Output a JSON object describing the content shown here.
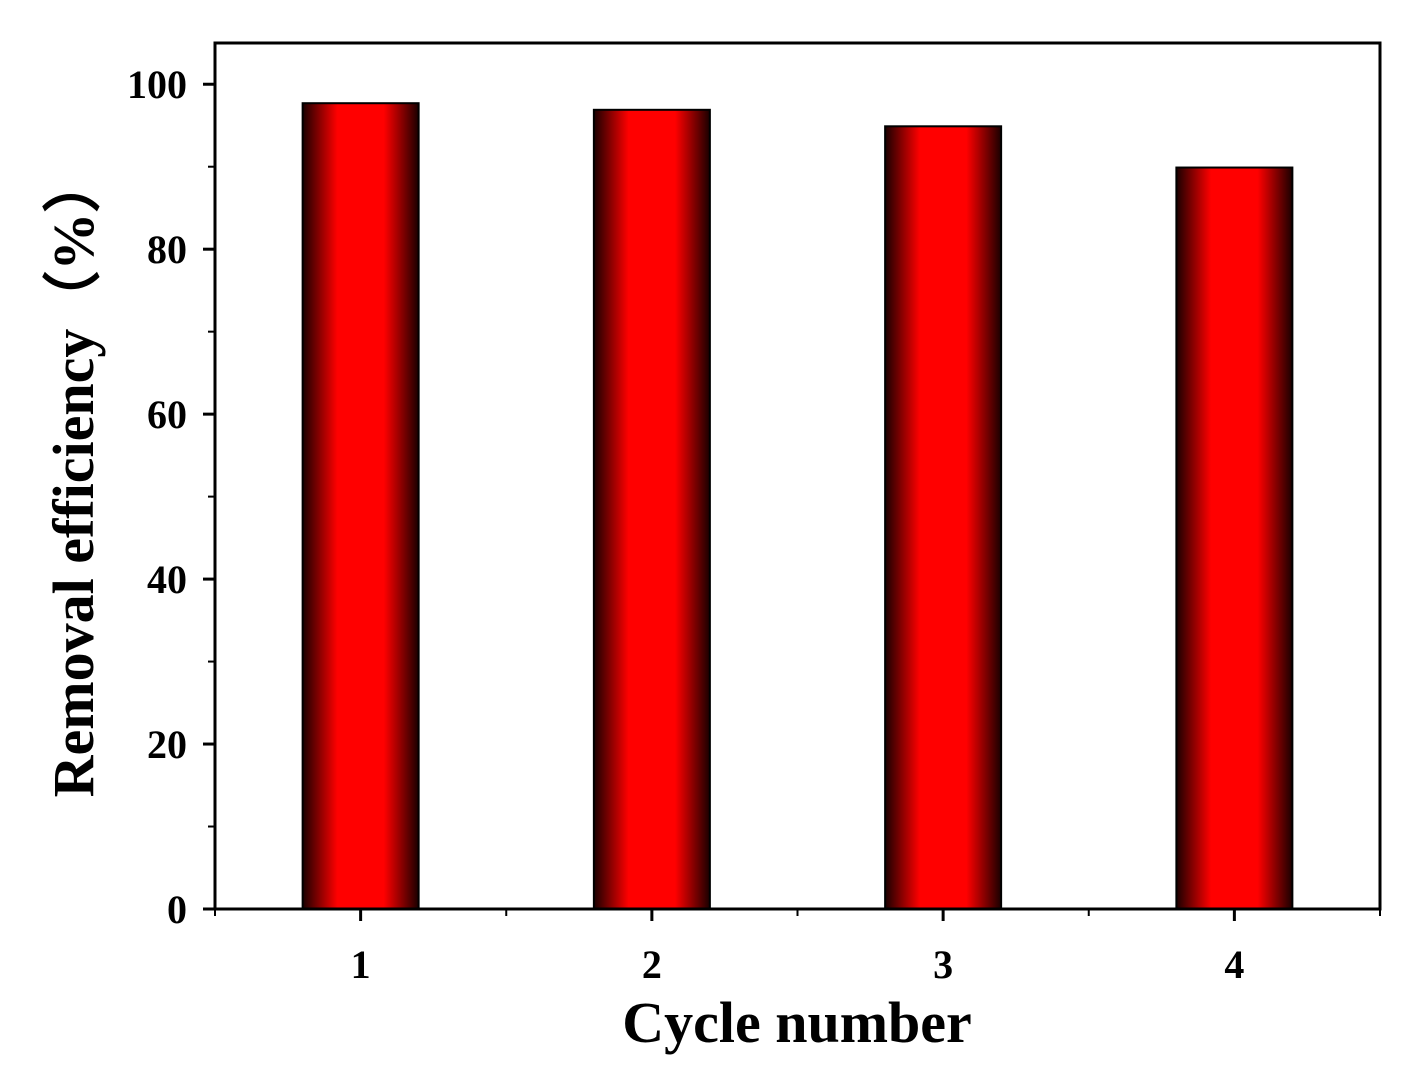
{
  "chart_data": {
    "type": "bar",
    "categories": [
      "1",
      "2",
      "3",
      "4"
    ],
    "values": [
      97.7,
      96.9,
      94.9,
      89.9
    ],
    "xlabel": "Cycle number",
    "ylabel": "Removal efficiency（%）",
    "ylim": [
      0,
      105
    ],
    "yticks": [
      "0",
      "20",
      "40",
      "60",
      "80",
      "100"
    ],
    "grid": false,
    "legend": "none",
    "colors": {
      "bar_center": "#ff0000",
      "bar_edge": "#1a0000",
      "axis": "#000000"
    }
  }
}
